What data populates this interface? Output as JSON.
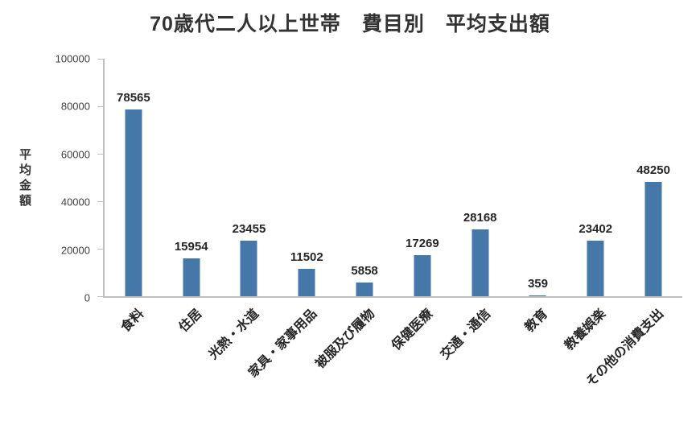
{
  "chart_data": {
    "type": "bar",
    "title": "70歳代二人以上世帯　費目別　平均支出額",
    "ylabel": "平均金額",
    "xlabel": "",
    "categories": [
      "食料",
      "住居",
      "光熱・水道",
      "家具・家事用品",
      "被服及び履物",
      "保健医療",
      "交通・通信",
      "教育",
      "教養娯楽",
      "その他の消費支出"
    ],
    "values": [
      78565,
      15954,
      23455,
      11502,
      5858,
      17269,
      28168,
      359,
      23402,
      48250
    ],
    "ylim": [
      0,
      100000
    ],
    "ytick_interval": 20000,
    "ytick_labels": [
      "0",
      "20000",
      "40000",
      "60000",
      "80000",
      "100000"
    ],
    "bar_color": "#4577a9",
    "axis_color": "#bfbfbf",
    "text_color": "#262626",
    "grid": false,
    "legend": false
  }
}
